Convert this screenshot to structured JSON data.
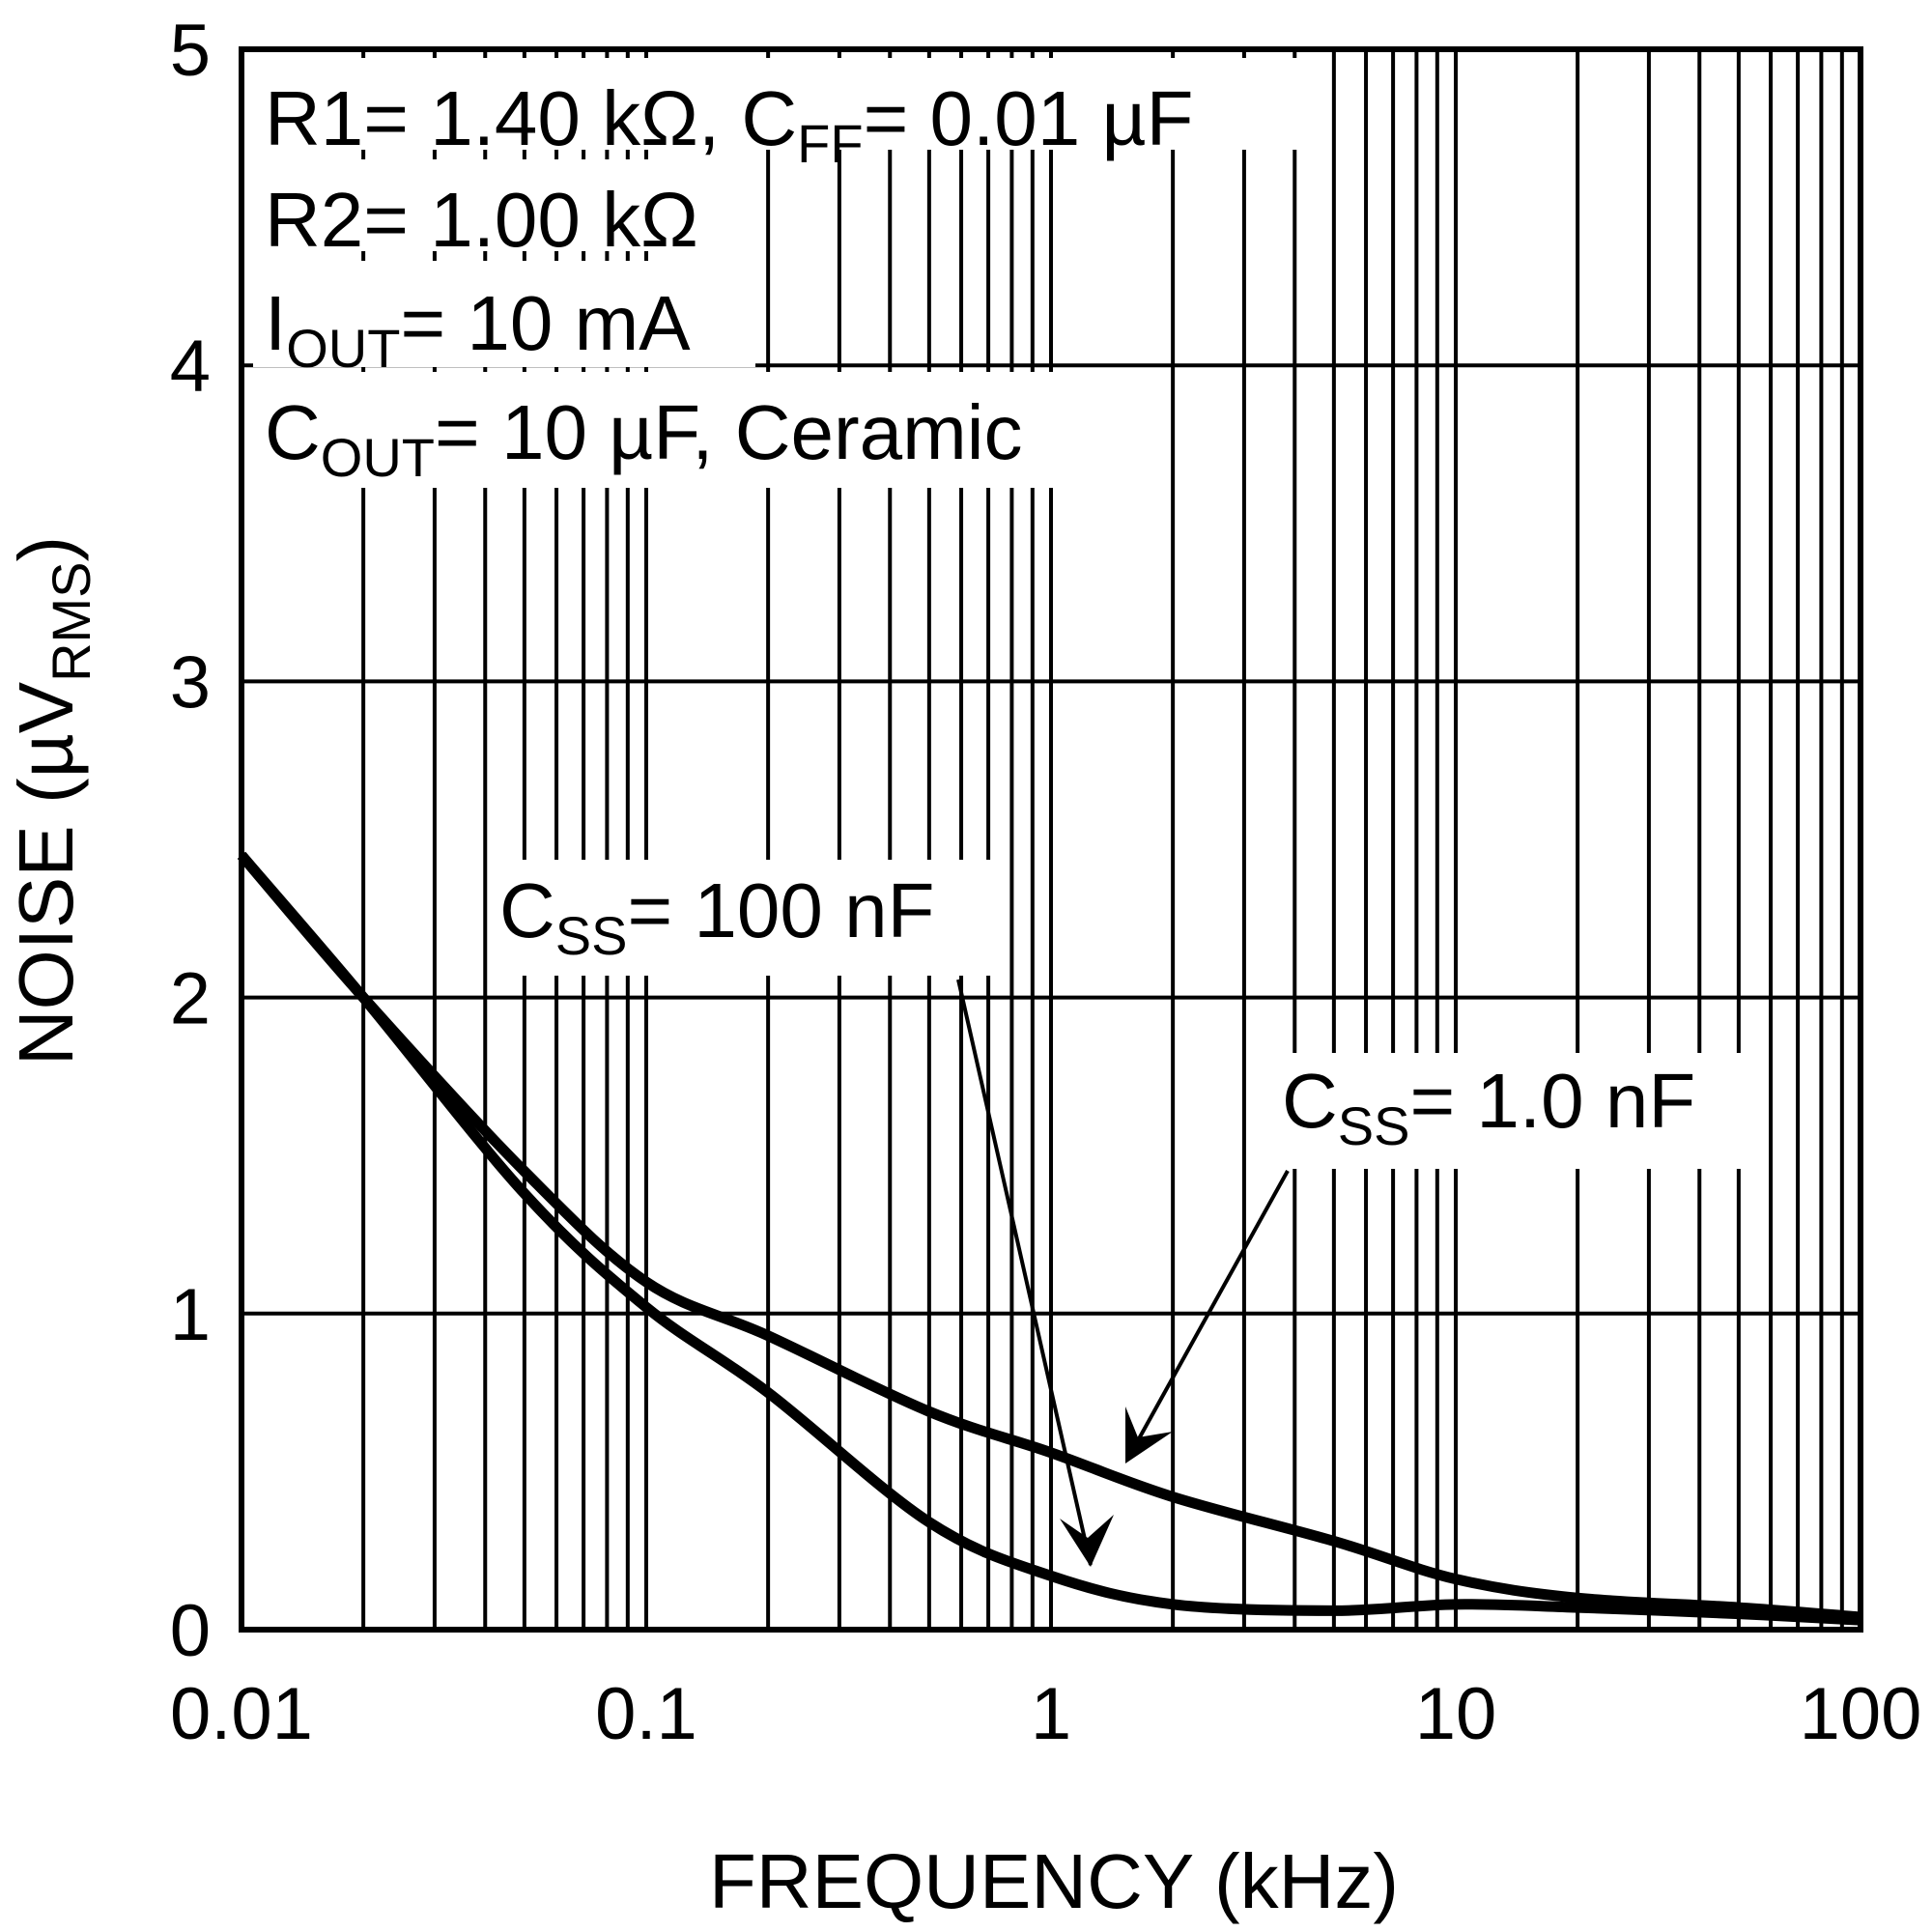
{
  "chart_data": {
    "type": "line",
    "xlabel": "FREQUENCY (kHz)",
    "ylabel_main": "NOISE (µV",
    "ylabel_sub": "RMS",
    "ylabel_end": ")",
    "x_scale": "log",
    "xlim": [
      0.01,
      100
    ],
    "ylim": [
      0,
      5
    ],
    "grid": true,
    "xticks": [
      "0.01",
      "0.1",
      "1",
      "10",
      "100"
    ],
    "yticks": [
      "0",
      "1",
      "2",
      "3",
      "4",
      "5"
    ],
    "conditions": [
      {
        "a": "R1= 1.40 kΩ, C",
        "sub": "FF",
        "b": "= 0.01 µF"
      },
      {
        "a": "R2= 1.00 kΩ",
        "sub": "",
        "b": ""
      },
      {
        "a": "I",
        "sub": "OUT",
        "b": "= 10 mA"
      },
      {
        "a": "C",
        "sub": "OUT",
        "b": "= 10 µF, Ceramic"
      }
    ],
    "series": [
      {
        "label_a": "C",
        "label_sub": "SS",
        "label_b": "= 1.0 nF",
        "x": [
          0.01,
          0.02,
          0.05,
          0.1,
          0.2,
          0.5,
          1,
          2,
          5,
          10,
          20,
          50,
          100
        ],
        "y": [
          2.45,
          2.0,
          1.45,
          1.1,
          0.93,
          0.69,
          0.56,
          0.42,
          0.28,
          0.16,
          0.1,
          0.07,
          0.04
        ]
      },
      {
        "label_a": "C",
        "label_sub": "SS",
        "label_b": "= 100 nF",
        "x": [
          0.01,
          0.02,
          0.05,
          0.1,
          0.2,
          0.5,
          1,
          2,
          5,
          10,
          20,
          50,
          100
        ],
        "y": [
          2.45,
          2.0,
          1.38,
          1.02,
          0.75,
          0.34,
          0.17,
          0.08,
          0.06,
          0.08,
          0.07,
          0.05,
          0.03
        ]
      }
    ]
  }
}
